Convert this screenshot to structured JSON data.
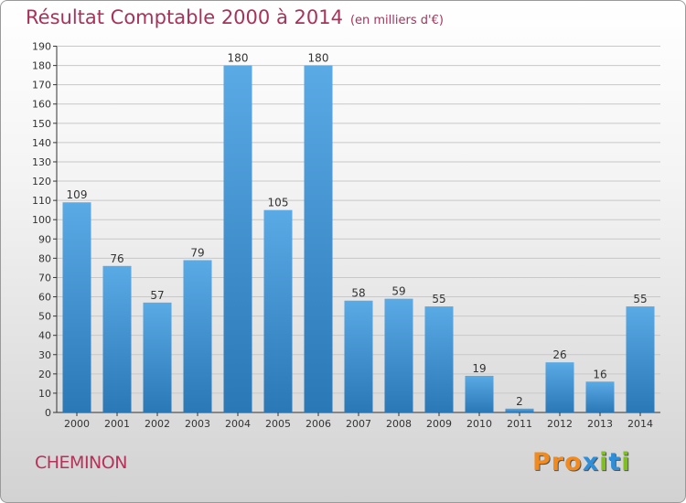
{
  "title": "Résultat Comptable 2000 à 2014",
  "unit": "(en milliers d'€)",
  "town": "CHEMINON",
  "logo": {
    "text": "Proxiti",
    "colors": [
      "#f28a1d",
      "#f28a1d",
      "#f28a1d",
      "#2e8ed8",
      "#7fbf1f",
      "#2e8ed8",
      "#7fbf1f"
    ]
  },
  "colors": {
    "bar_top": "#5aaae6",
    "bar_bottom": "#2a78b6",
    "axis": "#333333",
    "grid": "#c8c8c8",
    "title": "#a8325a"
  },
  "chart_data": {
    "type": "bar",
    "categories": [
      "2000",
      "2001",
      "2002",
      "2003",
      "2004",
      "2005",
      "2006",
      "2007",
      "2008",
      "2009",
      "2010",
      "2011",
      "2012",
      "2013",
      "2014"
    ],
    "values": [
      109,
      76,
      57,
      79,
      180,
      105,
      180,
      58,
      59,
      55,
      19,
      2,
      26,
      16,
      55
    ],
    "ylim": [
      0,
      190
    ],
    "ytick_step": 10,
    "grid": true,
    "data_labels": true
  }
}
